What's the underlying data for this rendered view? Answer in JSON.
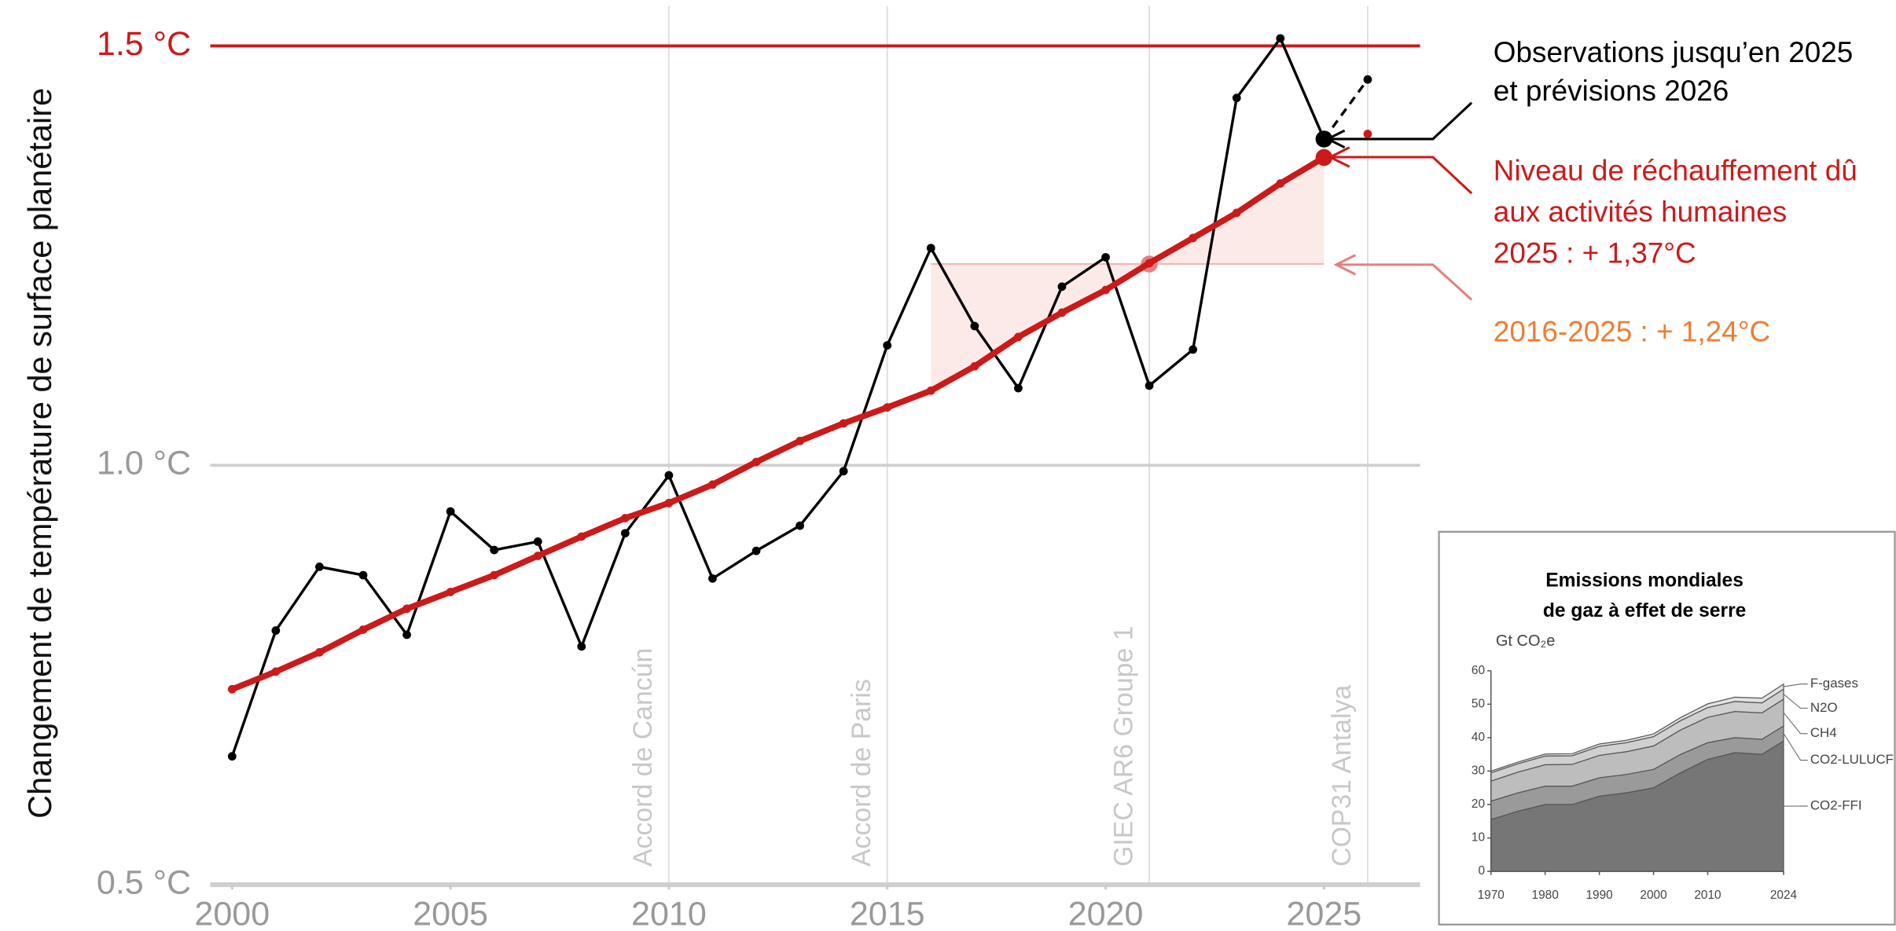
{
  "chart_data": [
    {
      "type": "line",
      "ylabel": "Changement de température de surface planétaire",
      "x": [
        2000,
        2001,
        2002,
        2003,
        2004,
        2005,
        2006,
        2007,
        2008,
        2009,
        2010,
        2011,
        2012,
        2013,
        2014,
        2015,
        2016,
        2017,
        2018,
        2019,
        2020,
        2021,
        2022,
        2023,
        2024,
        2025,
        2026
      ],
      "series": [
        {
          "name": "Observations",
          "color": "#000000",
          "values": [
            0.653,
            0.803,
            0.879,
            0.869,
            0.798,
            0.945,
            0.899,
            0.909,
            0.784,
            0.919,
            0.988,
            0.865,
            0.898,
            0.928,
            0.993,
            1.143,
            1.259,
            1.166,
            1.092,
            1.213,
            1.248,
            1.095,
            1.138,
            1.438,
            1.509,
            1.389,
            1.46
          ]
        },
        {
          "name": "Niveau de réchauffement dû aux activités humaines",
          "color": "#cc1a1a",
          "values": [
            0.733,
            0.754,
            0.777,
            0.804,
            0.829,
            0.849,
            0.869,
            0.892,
            0.915,
            0.937,
            0.955,
            0.977,
            1.004,
            1.029,
            1.05,
            1.069,
            1.089,
            1.118,
            1.153,
            1.182,
            1.209,
            1.241,
            1.271,
            1.301,
            1.336,
            1.367,
            1.395
          ]
        }
      ],
      "average": {
        "start": 2016,
        "end": 2025,
        "value": 1.24,
        "color": "#e58080"
      },
      "xlim": [
        1999.5,
        2027.2
      ],
      "xticks": [
        2000,
        2005,
        2010,
        2015,
        2020,
        2025
      ],
      "ylim": [
        0.5,
        1.55
      ],
      "yticks": [
        {
          "value": 0.5,
          "label": "0.5 °C",
          "color": "#999999"
        },
        {
          "value": 1.0,
          "label": "1.0 °C",
          "color": "#999999"
        },
        {
          "value": 1.5,
          "label": "1.5 °C",
          "color": "#cc1a1a"
        }
      ],
      "events": [
        {
          "x": 2010,
          "label": "Accord de Cancún"
        },
        {
          "x": 2015,
          "label": "Accord de Paris"
        },
        {
          "x": 2021,
          "label": "GIEC AR6 Groupe 1"
        },
        {
          "x": 2026,
          "label": "COP31 Antalya"
        }
      ],
      "annotations": [
        {
          "text": "Observations jusqu’en 2025",
          "color": "#000000"
        },
        {
          "text": "et prévisions 2026",
          "color": "#000000"
        },
        {
          "text": "Niveau de réchauffement dû",
          "color": "#cc1a1a"
        },
        {
          "text": "aux activités humaines",
          "color": "#cc1a1a"
        },
        {
          "text": "2025 : + 1,37°C",
          "color": "#cc1a1a"
        },
        {
          "text": "2016-2025 : + 1,24°C",
          "color": "#ee7d31"
        }
      ]
    },
    {
      "type": "stacked_area",
      "title": [
        "Emissions mondiales",
        "de gaz à effet de serre"
      ],
      "ylabel": "Gt CO₂e",
      "x": [
        1970,
        1975,
        1980,
        1985,
        1990,
        1995,
        2000,
        2005,
        2010,
        2015,
        2020,
        2024
      ],
      "series": [
        {
          "name": "CO2-FFI",
          "color": "#767676",
          "values": [
            15.5,
            18,
            20,
            20,
            22.5,
            23.5,
            25,
            29.5,
            33.5,
            35.5,
            35,
            39
          ]
        },
        {
          "name": "CO2-LULUCF",
          "color": "#9a9a9a",
          "values": [
            5.5,
            5.5,
            5.5,
            5.5,
            5.5,
            5.5,
            5.5,
            5.5,
            5,
            4.5,
            4.5,
            4.5
          ]
        },
        {
          "name": "CH4",
          "color": "#bdbdbd",
          "values": [
            6,
            6.2,
            6.4,
            6.5,
            6.7,
            6.8,
            7,
            7.3,
            7.6,
            7.8,
            7.9,
            8
          ]
        },
        {
          "name": "N2O",
          "color": "#d0d0d0",
          "values": [
            2.5,
            2.5,
            2.6,
            2.6,
            2.7,
            2.7,
            2.8,
            2.8,
            2.9,
            3,
            3,
            3
          ]
        },
        {
          "name": "F-gases",
          "color": "#e2e2e2",
          "values": [
            0.5,
            0.5,
            0.6,
            0.6,
            0.7,
            0.7,
            0.8,
            0.9,
            1.1,
            1.3,
            1.4,
            1.5
          ]
        }
      ],
      "xlim": [
        1970,
        2024
      ],
      "xticks": [
        1970,
        1980,
        1990,
        2000,
        2010,
        2024
      ],
      "ylim": [
        0,
        60
      ],
      "yticks": [
        0,
        10,
        20,
        30,
        40,
        50,
        60
      ]
    }
  ]
}
